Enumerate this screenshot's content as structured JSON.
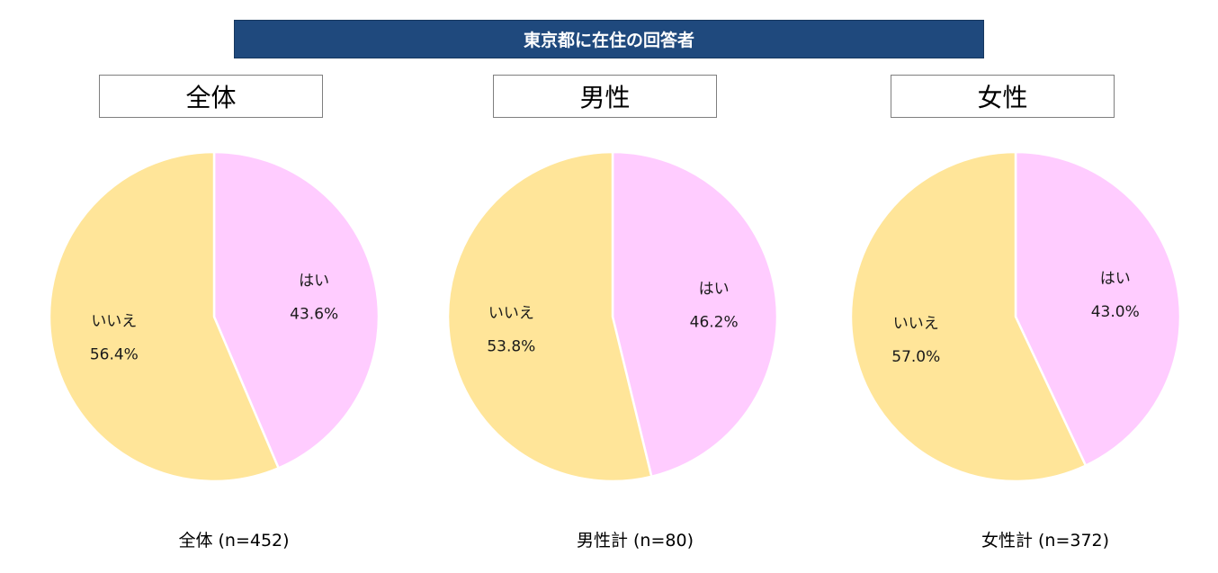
{
  "header": {
    "banner_title": "東京都に在住の回答者"
  },
  "colors": {
    "banner_bg": "#1f497d",
    "yes": "#ffccff",
    "no": "#ffe599",
    "slice_border": "#ffffff"
  },
  "panels": [
    {
      "title": "全体",
      "caption": "全体 (n=452)"
    },
    {
      "title": "男性",
      "caption": "男性計 (n=80)"
    },
    {
      "title": "女性",
      "caption": "女性計 (n=372)"
    }
  ],
  "chart_data": [
    {
      "type": "pie",
      "title": "全体",
      "labels": [
        "はい",
        "いいえ"
      ],
      "values": [
        43.6,
        56.4
      ],
      "value_labels": [
        "43.6%",
        "56.4%"
      ],
      "colors": [
        "#ffccff",
        "#ffe599"
      ]
    },
    {
      "type": "pie",
      "title": "男性",
      "labels": [
        "はい",
        "いいえ"
      ],
      "values": [
        46.2,
        53.8
      ],
      "value_labels": [
        "46.2%",
        "53.8%"
      ],
      "colors": [
        "#ffccff",
        "#ffe599"
      ]
    },
    {
      "type": "pie",
      "title": "女性",
      "labels": [
        "はい",
        "いいえ"
      ],
      "values": [
        43.0,
        57.0
      ],
      "value_labels": [
        "43.0%",
        "57.0%"
      ],
      "colors": [
        "#ffccff",
        "#ffe599"
      ]
    }
  ]
}
